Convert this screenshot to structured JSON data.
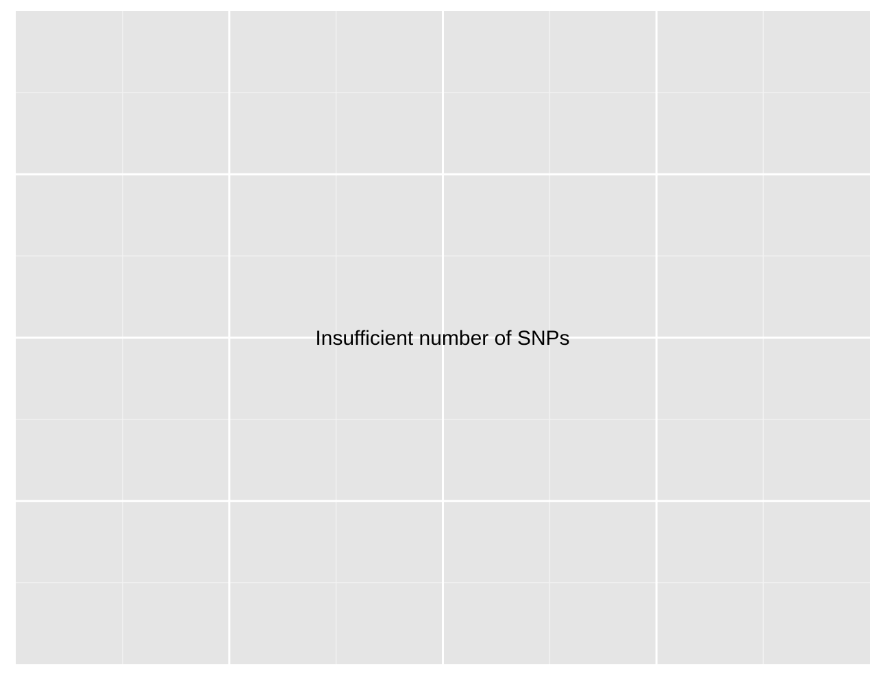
{
  "chart_data": {
    "type": "scatter",
    "title": "",
    "xlabel": "",
    "ylabel": "",
    "series": [],
    "grid": true,
    "grid_major_columns": 4,
    "grid_minor_columns": 8,
    "grid_major_rows": 4,
    "grid_minor_rows": 8,
    "annotations": [
      {
        "text": "Insufficient number of SNPs"
      }
    ]
  },
  "colors": {
    "panel_background": "#e5e5e5",
    "grid_major": "#ffffff",
    "grid_minor": "#f2f2f2",
    "text": "#000000"
  }
}
